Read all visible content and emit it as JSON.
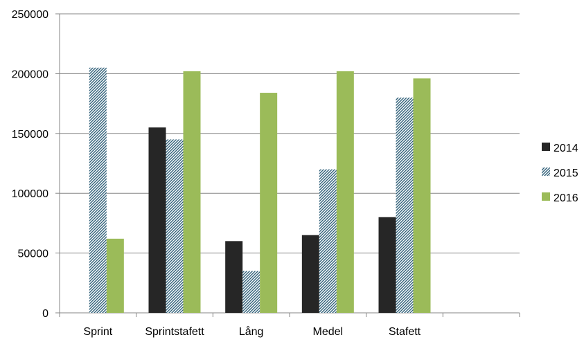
{
  "chart_data": {
    "type": "bar",
    "categories": [
      "Sprint",
      "Sprintstafett",
      "Lång",
      "Medel",
      "Stafett",
      ""
    ],
    "series": [
      {
        "name": "2014",
        "values": [
          0,
          155000,
          60000,
          65000,
          80000,
          0
        ],
        "color": "#262626",
        "pattern": "solid"
      },
      {
        "name": "2015",
        "values": [
          205000,
          145000,
          35000,
          120000,
          180000,
          0
        ],
        "color": "#31617a",
        "pattern": "diagonal-hatch"
      },
      {
        "name": "2016",
        "values": [
          62000,
          202000,
          184000,
          202000,
          196000,
          0
        ],
        "color": "#9bbb59",
        "pattern": "solid"
      }
    ],
    "ylim": [
      0,
      250000
    ],
    "yticks": [
      0,
      50000,
      100000,
      150000,
      200000,
      250000
    ],
    "ytick_labels": [
      "0",
      "50000",
      "100000",
      "150000",
      "200000",
      "250000"
    ],
    "grid": true,
    "legend_position": "right",
    "title": "",
    "xlabel": "",
    "ylabel": ""
  }
}
